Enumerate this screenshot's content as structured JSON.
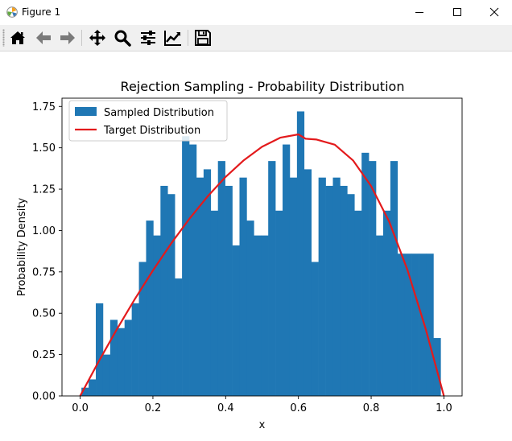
{
  "window": {
    "title": "Figure 1",
    "controls": [
      "minimize",
      "maximize",
      "close"
    ]
  },
  "toolbar": {
    "buttons": [
      {
        "name": "home-button",
        "icon": "home-icon"
      },
      {
        "name": "back-button",
        "icon": "arrow-left-icon"
      },
      {
        "name": "forward-button",
        "icon": "arrow-right-icon"
      },
      {
        "name": "pan-button",
        "icon": "move-icon"
      },
      {
        "name": "zoom-button",
        "icon": "magnifier-icon"
      },
      {
        "name": "configure-subplots-button",
        "icon": "sliders-icon"
      },
      {
        "name": "edit-axis-button",
        "icon": "chart-line-icon"
      },
      {
        "name": "save-button",
        "icon": "floppy-disk-icon"
      }
    ]
  },
  "colors": {
    "bars": "#1f77b4",
    "curve": "#e31a1c",
    "axes": "#000000"
  },
  "chart_data": {
    "type": "bar",
    "title": "Rejection Sampling - Probability Distribution",
    "xlabel": "x",
    "ylabel": "Probability Density",
    "xlim": [
      -0.05,
      1.05
    ],
    "ylim": [
      0.0,
      1.8
    ],
    "xticks": [
      "0.0",
      "0.2",
      "0.4",
      "0.6",
      "0.8",
      "1.0"
    ],
    "yticks": [
      "0.00",
      "0.25",
      "0.50",
      "0.75",
      "1.00",
      "1.25",
      "1.50",
      "1.75"
    ],
    "legend": {
      "placement": "upper-left",
      "entries": [
        {
          "label": "Sampled Distribution",
          "kind": "patch"
        },
        {
          "label": "Target Distribution",
          "kind": "line"
        }
      ]
    },
    "histogram": {
      "name": "Sampled Distribution",
      "bin_start": 0.0035,
      "bin_width": 0.01975,
      "values": [
        0.05,
        0.1,
        0.56,
        0.25,
        0.46,
        0.41,
        0.46,
        0.56,
        0.81,
        1.06,
        0.97,
        1.27,
        1.22,
        0.71,
        1.57,
        1.52,
        1.32,
        1.37,
        1.12,
        1.42,
        1.27,
        0.91,
        1.32,
        1.06,
        0.97,
        0.97,
        1.42,
        1.12,
        1.52,
        1.32,
        1.72,
        1.37,
        0.81,
        1.32,
        1.27,
        1.32,
        1.27,
        1.22,
        1.12,
        1.47,
        1.42,
        0.97,
        1.12,
        1.42,
        0.86,
        0.86,
        0.86,
        0.86,
        0.86,
        0.35
      ]
    },
    "curve": {
      "name": "Target Distribution",
      "x": [
        0.0,
        0.05,
        0.1,
        0.15,
        0.2,
        0.25,
        0.3,
        0.35,
        0.4,
        0.45,
        0.5,
        0.55,
        0.6,
        0.62,
        0.65,
        0.7,
        0.75,
        0.8,
        0.85,
        0.9,
        0.95,
        1.0
      ],
      "y": [
        0.0,
        0.205,
        0.4,
        0.585,
        0.759,
        0.921,
        1.07,
        1.205,
        1.324,
        1.425,
        1.506,
        1.561,
        1.581,
        1.555,
        1.55,
        1.519,
        1.424,
        1.269,
        1.052,
        0.761,
        0.405,
        0.0
      ]
    }
  }
}
